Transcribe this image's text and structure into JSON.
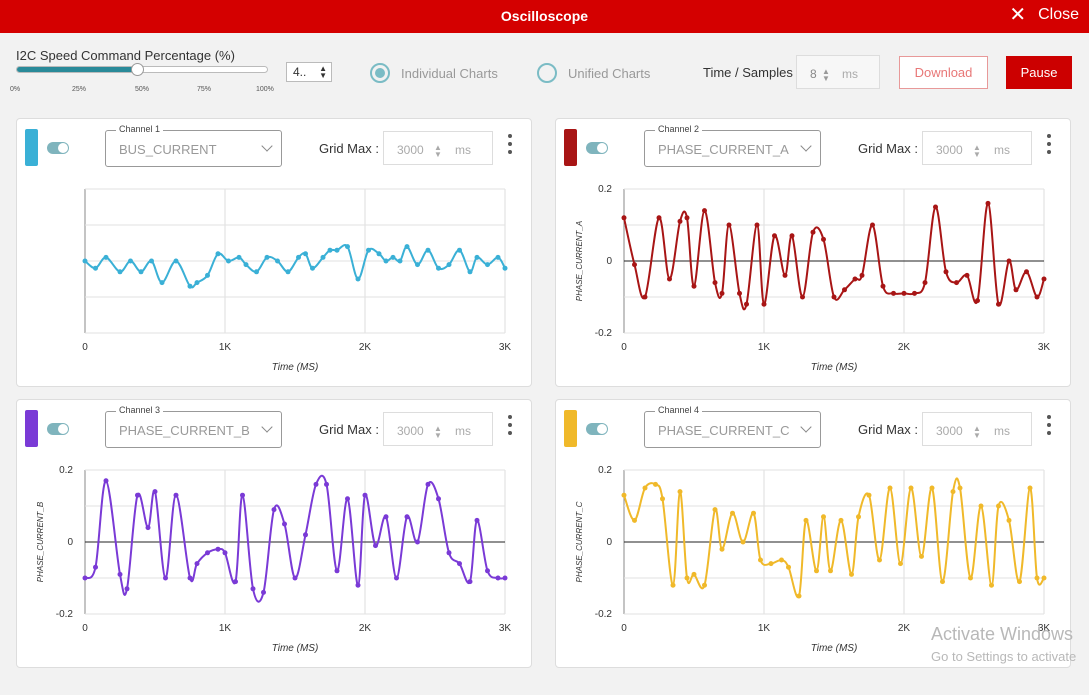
{
  "window": {
    "title": "Oscilloscope",
    "close_label": "Close",
    "close_icon": "close-icon"
  },
  "toolbar": {
    "slider_label": "I2C Speed Command Percentage (%)",
    "slider_value_percent": 48,
    "slider_ticks": [
      "0%",
      "25%",
      "50%",
      "75%",
      "100%"
    ],
    "number_value": "4..",
    "radio_individual": "Individual Charts",
    "radio_unified": "Unified Charts",
    "selected_mode": "individual",
    "time_samples_label": "Time / Samples",
    "time_samples_value": "8",
    "time_samples_unit": "ms",
    "download_label": "Download",
    "pause_label": "Pause"
  },
  "panels": [
    {
      "legend": "Channel 1",
      "channel": "BUS_CURRENT",
      "color": "#3ab0d6",
      "grid_label": "Grid Max :",
      "grid_value": "3000",
      "grid_unit": "ms"
    },
    {
      "legend": "Channel 2",
      "channel": "PHASE_CURRENT_A",
      "color": "#a81515",
      "grid_label": "Grid Max :",
      "grid_value": "3000",
      "grid_unit": "ms"
    },
    {
      "legend": "Channel 3",
      "channel": "PHASE_CURRENT_B",
      "color": "#7a3ad6",
      "grid_label": "Grid Max :",
      "grid_value": "3000",
      "grid_unit": "ms"
    },
    {
      "legend": "Channel 4",
      "channel": "PHASE_CURRENT_C",
      "color": "#f0b92a",
      "grid_label": "Grid Max :",
      "grid_value": "3000",
      "grid_unit": "ms"
    }
  ],
  "chart_data": [
    {
      "type": "line",
      "xlabel": "Time (MS)",
      "ylabel": "",
      "xlim": [
        0,
        3000
      ],
      "ylim": [
        -0.2,
        0.2
      ],
      "xticks": [
        "0",
        "1K",
        "2K",
        "3K"
      ],
      "yticks": [],
      "show_zero": false,
      "series": [
        {
          "color": "#3ab0d6",
          "x": [
            0,
            75,
            150,
            250,
            325,
            400,
            475,
            550,
            650,
            750,
            800,
            875,
            950,
            1025,
            1100,
            1150,
            1225,
            1300,
            1375,
            1450,
            1525,
            1575,
            1625,
            1700,
            1750,
            1800,
            1875,
            1950,
            2025,
            2100,
            2150,
            2200,
            2250,
            2300,
            2375,
            2450,
            2525,
            2600,
            2675,
            2750,
            2800,
            2875,
            2950,
            3000
          ],
          "y": [
            0.0,
            -0.02,
            0.01,
            -0.03,
            0.0,
            -0.03,
            0.0,
            -0.06,
            0.0,
            -0.07,
            -0.06,
            -0.04,
            0.02,
            0.0,
            0.01,
            -0.01,
            -0.03,
            0.01,
            0.0,
            -0.03,
            0.01,
            0.02,
            -0.02,
            0.01,
            0.03,
            0.03,
            0.04,
            -0.05,
            0.03,
            0.02,
            0.0,
            0.01,
            0.0,
            0.04,
            -0.01,
            0.03,
            -0.02,
            -0.01,
            0.03,
            -0.03,
            0.01,
            -0.01,
            0.01,
            -0.02
          ]
        }
      ]
    },
    {
      "type": "line",
      "xlabel": "Time (MS)",
      "ylabel": "PHASE_CURRENT_A",
      "xlim": [
        0,
        3000
      ],
      "ylim": [
        -0.2,
        0.2
      ],
      "xticks": [
        "0",
        "1K",
        "2K",
        "3K"
      ],
      "yticks": [
        "0.2",
        "0",
        "-0.2"
      ],
      "show_zero": true,
      "series": [
        {
          "color": "#a81515",
          "x": [
            0,
            75,
            150,
            250,
            325,
            400,
            450,
            500,
            575,
            650,
            700,
            750,
            825,
            875,
            950,
            1000,
            1075,
            1150,
            1200,
            1275,
            1350,
            1425,
            1500,
            1575,
            1650,
            1700,
            1775,
            1850,
            1925,
            2000,
            2075,
            2150,
            2225,
            2300,
            2375,
            2450,
            2525,
            2600,
            2675,
            2750,
            2800,
            2875,
            2950,
            3000
          ],
          "y": [
            0.12,
            -0.01,
            -0.1,
            0.12,
            -0.05,
            0.11,
            0.12,
            -0.07,
            0.14,
            -0.06,
            -0.09,
            0.1,
            -0.09,
            -0.12,
            0.1,
            -0.12,
            0.07,
            -0.04,
            0.07,
            -0.1,
            0.08,
            0.06,
            -0.1,
            -0.08,
            -0.05,
            -0.04,
            0.1,
            -0.07,
            -0.09,
            -0.09,
            -0.09,
            -0.06,
            0.15,
            -0.03,
            -0.06,
            -0.04,
            -0.11,
            0.16,
            -0.12,
            0.0,
            -0.08,
            -0.03,
            -0.1,
            -0.05
          ]
        }
      ]
    },
    {
      "type": "line",
      "xlabel": "Time (MS)",
      "ylabel": "PHASE_CURRENT_B",
      "xlim": [
        0,
        3000
      ],
      "ylim": [
        -0.2,
        0.2
      ],
      "xticks": [
        "0",
        "1K",
        "2K",
        "3K"
      ],
      "yticks": [
        "0.2",
        "0",
        "-0.2"
      ],
      "show_zero": true,
      "series": [
        {
          "color": "#7a3ad6",
          "x": [
            0,
            75,
            150,
            250,
            300,
            375,
            450,
            500,
            575,
            650,
            750,
            800,
            875,
            950,
            1000,
            1075,
            1125,
            1200,
            1275,
            1350,
            1425,
            1500,
            1575,
            1650,
            1725,
            1800,
            1875,
            1950,
            2000,
            2075,
            2150,
            2225,
            2300,
            2375,
            2450,
            2525,
            2600,
            2675,
            2750,
            2800,
            2875,
            2950,
            3000
          ],
          "y": [
            -0.1,
            -0.07,
            0.17,
            -0.09,
            -0.13,
            0.13,
            0.04,
            0.14,
            -0.1,
            0.13,
            -0.1,
            -0.06,
            -0.03,
            -0.02,
            -0.03,
            -0.11,
            0.13,
            -0.13,
            -0.14,
            0.09,
            0.05,
            -0.1,
            0.02,
            0.16,
            0.16,
            -0.08,
            0.12,
            -0.12,
            0.13,
            -0.01,
            0.07,
            -0.1,
            0.07,
            0.0,
            0.16,
            0.12,
            -0.03,
            -0.06,
            -0.11,
            0.06,
            -0.08,
            -0.1,
            -0.1
          ]
        }
      ]
    },
    {
      "type": "line",
      "xlabel": "Time (MS)",
      "ylabel": "PHASE_CURRENT_C",
      "xlim": [
        0,
        3000
      ],
      "ylim": [
        -0.2,
        0.2
      ],
      "xticks": [
        "0",
        "1K",
        "2K",
        "3K"
      ],
      "yticks": [
        "0.2",
        "0",
        "-0.2"
      ],
      "show_zero": true,
      "series": [
        {
          "color": "#f0b92a",
          "x": [
            0,
            75,
            150,
            225,
            275,
            350,
            400,
            450,
            500,
            575,
            650,
            700,
            775,
            850,
            925,
            975,
            1050,
            1125,
            1175,
            1250,
            1300,
            1375,
            1425,
            1475,
            1550,
            1625,
            1675,
            1750,
            1825,
            1900,
            1975,
            2050,
            2125,
            2200,
            2275,
            2350,
            2400,
            2475,
            2550,
            2625,
            2675,
            2750,
            2825,
            2900,
            2950,
            3000
          ],
          "y": [
            0.13,
            0.06,
            0.15,
            0.16,
            0.12,
            -0.12,
            0.14,
            -0.1,
            -0.09,
            -0.12,
            0.09,
            -0.02,
            0.08,
            0.0,
            0.08,
            -0.05,
            -0.06,
            -0.05,
            -0.07,
            -0.15,
            0.06,
            -0.08,
            0.07,
            -0.08,
            0.06,
            -0.09,
            0.07,
            0.13,
            -0.05,
            0.15,
            -0.06,
            0.15,
            -0.04,
            0.15,
            -0.11,
            0.14,
            0.15,
            -0.1,
            0.1,
            -0.12,
            0.1,
            0.06,
            -0.11,
            0.15,
            -0.1,
            -0.1
          ]
        }
      ]
    }
  ],
  "watermark": {
    "line1": "Activate Windows",
    "line2": "Go to Settings to activate"
  }
}
